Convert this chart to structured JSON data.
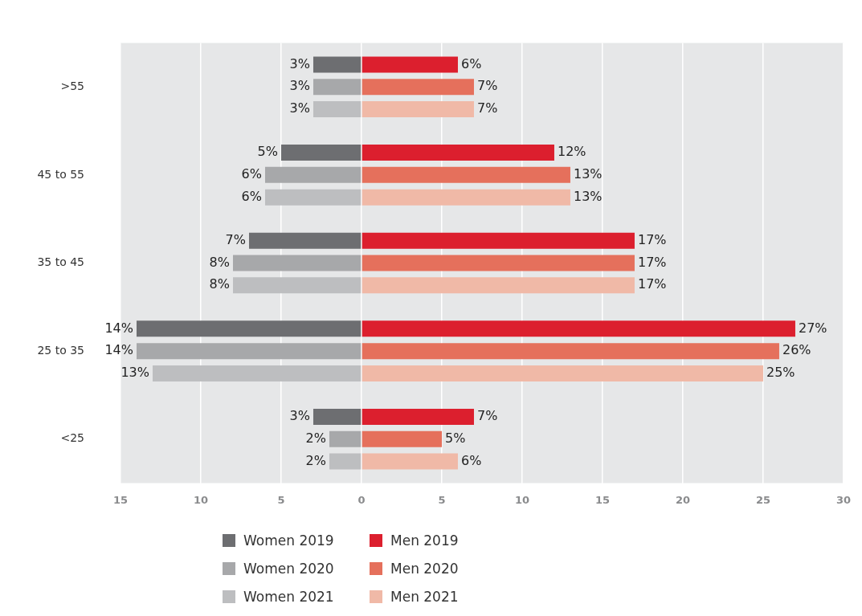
{
  "chart_data": {
    "type": "bar",
    "orientation": "horizontal",
    "categories": [
      ">55",
      "45 to 55",
      "35 to 45",
      "25 to 35",
      "<25"
    ],
    "series": [
      {
        "name": "Women 2019",
        "color": "#6d6e71",
        "base": [
          -3,
          -5,
          -7,
          -14,
          -3
        ],
        "values": [
          3,
          5,
          7,
          14,
          3
        ],
        "value_labels": [
          "3%",
          "5%",
          "7%",
          "14%",
          "3%"
        ]
      },
      {
        "name": "Women 2020",
        "color": "#a7a8aa",
        "base": [
          -3,
          -6,
          -8,
          -14,
          -2
        ],
        "values": [
          3,
          6,
          8,
          14,
          2
        ],
        "value_labels": [
          "3%",
          "6%",
          "8%",
          "14%",
          "2%"
        ]
      },
      {
        "name": "Women 2021",
        "color": "#bdbec0",
        "base": [
          -3,
          -6,
          -8,
          -13,
          -2
        ],
        "values": [
          3,
          6,
          8,
          13,
          2
        ],
        "value_labels": [
          "3%",
          "6%",
          "8%",
          "13%",
          "2%"
        ]
      },
      {
        "name": "Men 2019",
        "color": "#dc1f2e",
        "values": [
          6,
          12,
          17,
          27,
          7
        ],
        "value_labels": [
          "6%",
          "12%",
          "17%",
          "27%",
          "7%"
        ]
      },
      {
        "name": "Men 2020",
        "color": "#e5705c",
        "values": [
          7,
          13,
          17,
          26,
          5
        ],
        "value_labels": [
          "7%",
          "13%",
          "17%",
          "26%",
          "5%"
        ]
      },
      {
        "name": "Men 2021",
        "color": "#f0b9a7",
        "values": [
          7,
          13,
          17,
          25,
          6
        ],
        "value_labels": [
          "7%",
          "13%",
          "17%",
          "25%",
          "6%"
        ]
      }
    ],
    "xlim": [
      -15,
      30
    ],
    "xticks": [
      {
        "value": -15,
        "label": "15"
      },
      {
        "value": -10,
        "label": "10"
      },
      {
        "value": -5,
        "label": "5"
      },
      0,
      5,
      10,
      15,
      20,
      25,
      30
    ],
    "grid": "x",
    "legend": "bottom"
  }
}
